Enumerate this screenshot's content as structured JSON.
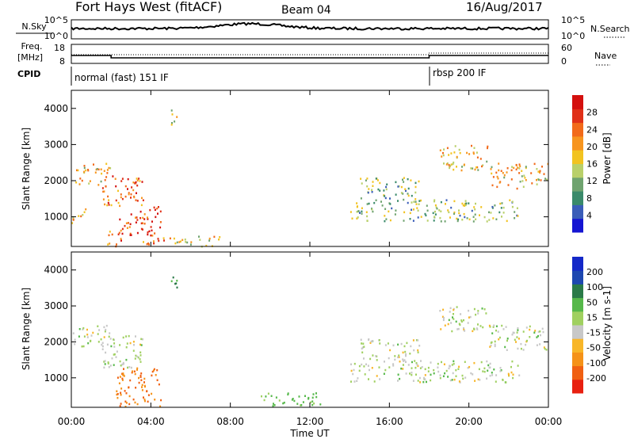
{
  "header": {
    "title": "Fort Hays West (fitACF)",
    "beam": "Beam 04",
    "date": "16/Aug/2017"
  },
  "status": {
    "left_labels": {
      "nsky": "N.Sky",
      "freq": "Freq.",
      "mhz": "[MHz]",
      "cpid": "CPID"
    },
    "right_labels": {
      "nsearch": "N.Search",
      "nave": "Nave"
    },
    "noise_ticks": {
      "top": "10^5",
      "bottom": "10^0"
    },
    "freq_ticks": {
      "top": "18",
      "bottom": "8"
    },
    "nave_ticks": {
      "top": "60",
      "bottom": "0"
    },
    "cpid": [
      {
        "text": "normal (fast) 151 IF",
        "start_hour": 0
      },
      {
        "text": "rbsp 200 IF",
        "start_hour": 18
      }
    ]
  },
  "chart_data": [
    {
      "type": "heatmap",
      "panel": "power",
      "ylabel": "Slant Range [km]",
      "colorbar_label": "Power [dB]",
      "ylim": [
        180,
        4500
      ],
      "yticks": [
        1000,
        2000,
        3000,
        4000
      ],
      "colorbar_ticks": [
        "4",
        "8",
        "12",
        "16",
        "20",
        "24",
        "28"
      ],
      "colorbar_colors": [
        "#1515d2",
        "#3a5db8",
        "#3a8a6a",
        "#6fa36f",
        "#b9d06a",
        "#f2c320",
        "#f7951f",
        "#f26a1a",
        "#e03018",
        "#d4100e"
      ],
      "echo_regions": [
        {
          "t": [
            0.0,
            0.8
          ],
          "r": [
            850,
            1250
          ],
          "power": 18
        },
        {
          "t": [
            0.2,
            2.0
          ],
          "r": [
            1900,
            2500
          ],
          "power": 18
        },
        {
          "t": [
            1.5,
            3.6
          ],
          "r": [
            1300,
            2200
          ],
          "power": 24
        },
        {
          "t": [
            2.3,
            4.5
          ],
          "r": [
            500,
            1300
          ],
          "power": 26
        },
        {
          "t": [
            1.8,
            2.6
          ],
          "r": [
            200,
            700
          ],
          "power": 24
        },
        {
          "t": [
            3.5,
            5.0
          ],
          "r": [
            200,
            450
          ],
          "power": 22
        },
        {
          "t": [
            5.0,
            7.5
          ],
          "r": [
            200,
            500
          ],
          "power": 18
        },
        {
          "t": [
            5.0,
            5.4
          ],
          "r": [
            3500,
            4000
          ],
          "power": 16
        },
        {
          "t": [
            14.0,
            22.5
          ],
          "r": [
            900,
            1500
          ],
          "power": 12
        },
        {
          "t": [
            14.5,
            17.5
          ],
          "r": [
            1500,
            2100
          ],
          "power": 12
        },
        {
          "t": [
            18.5,
            21.0
          ],
          "r": [
            2300,
            3000
          ],
          "power": 18
        },
        {
          "t": [
            21.0,
            24.0
          ],
          "r": [
            1800,
            2500
          ],
          "power": 18
        }
      ]
    },
    {
      "type": "heatmap",
      "panel": "velocity",
      "ylabel": "Slant Range [km]",
      "colorbar_label": "Velocity [m s-1]",
      "ylim": [
        180,
        4500
      ],
      "yticks": [
        1000,
        2000,
        3000,
        4000
      ],
      "colorbar_ticks": [
        "-200",
        "-100",
        "-50",
        "-15",
        "15",
        "50",
        "100",
        "200"
      ],
      "colorbar_colors": [
        "#e82010",
        "#f06012",
        "#f59218",
        "#f8b628",
        "#c8c8c8",
        "#a0d060",
        "#56b84a",
        "#2a7a48",
        "#1d48b0",
        "#1428c8"
      ],
      "echo_regions": [
        {
          "t": [
            0.0,
            2.0
          ],
          "r": [
            1900,
            2500
          ],
          "velocity": 0
        },
        {
          "t": [
            1.5,
            3.6
          ],
          "r": [
            1300,
            2200
          ],
          "velocity": 0
        },
        {
          "t": [
            2.2,
            4.5
          ],
          "r": [
            200,
            1300
          ],
          "velocity": -100
        },
        {
          "t": [
            5.0,
            5.4
          ],
          "r": [
            3500,
            4000
          ],
          "velocity": 60
        },
        {
          "t": [
            9.5,
            12.5
          ],
          "r": [
            200,
            600
          ],
          "velocity": 30
        },
        {
          "t": [
            14.0,
            22.5
          ],
          "r": [
            900,
            1500
          ],
          "velocity": 0
        },
        {
          "t": [
            14.5,
            17.5
          ],
          "r": [
            1500,
            2100
          ],
          "velocity": 0
        },
        {
          "t": [
            18.5,
            21.0
          ],
          "r": [
            2300,
            3000
          ],
          "velocity": 0
        },
        {
          "t": [
            21.0,
            24.0
          ],
          "r": [
            1800,
            2500
          ],
          "velocity": 0
        }
      ]
    }
  ],
  "xaxis": {
    "label": "Time UT",
    "ticks": [
      "00:00",
      "04:00",
      "08:00",
      "12:00",
      "16:00",
      "20:00",
      "00:00"
    ]
  }
}
